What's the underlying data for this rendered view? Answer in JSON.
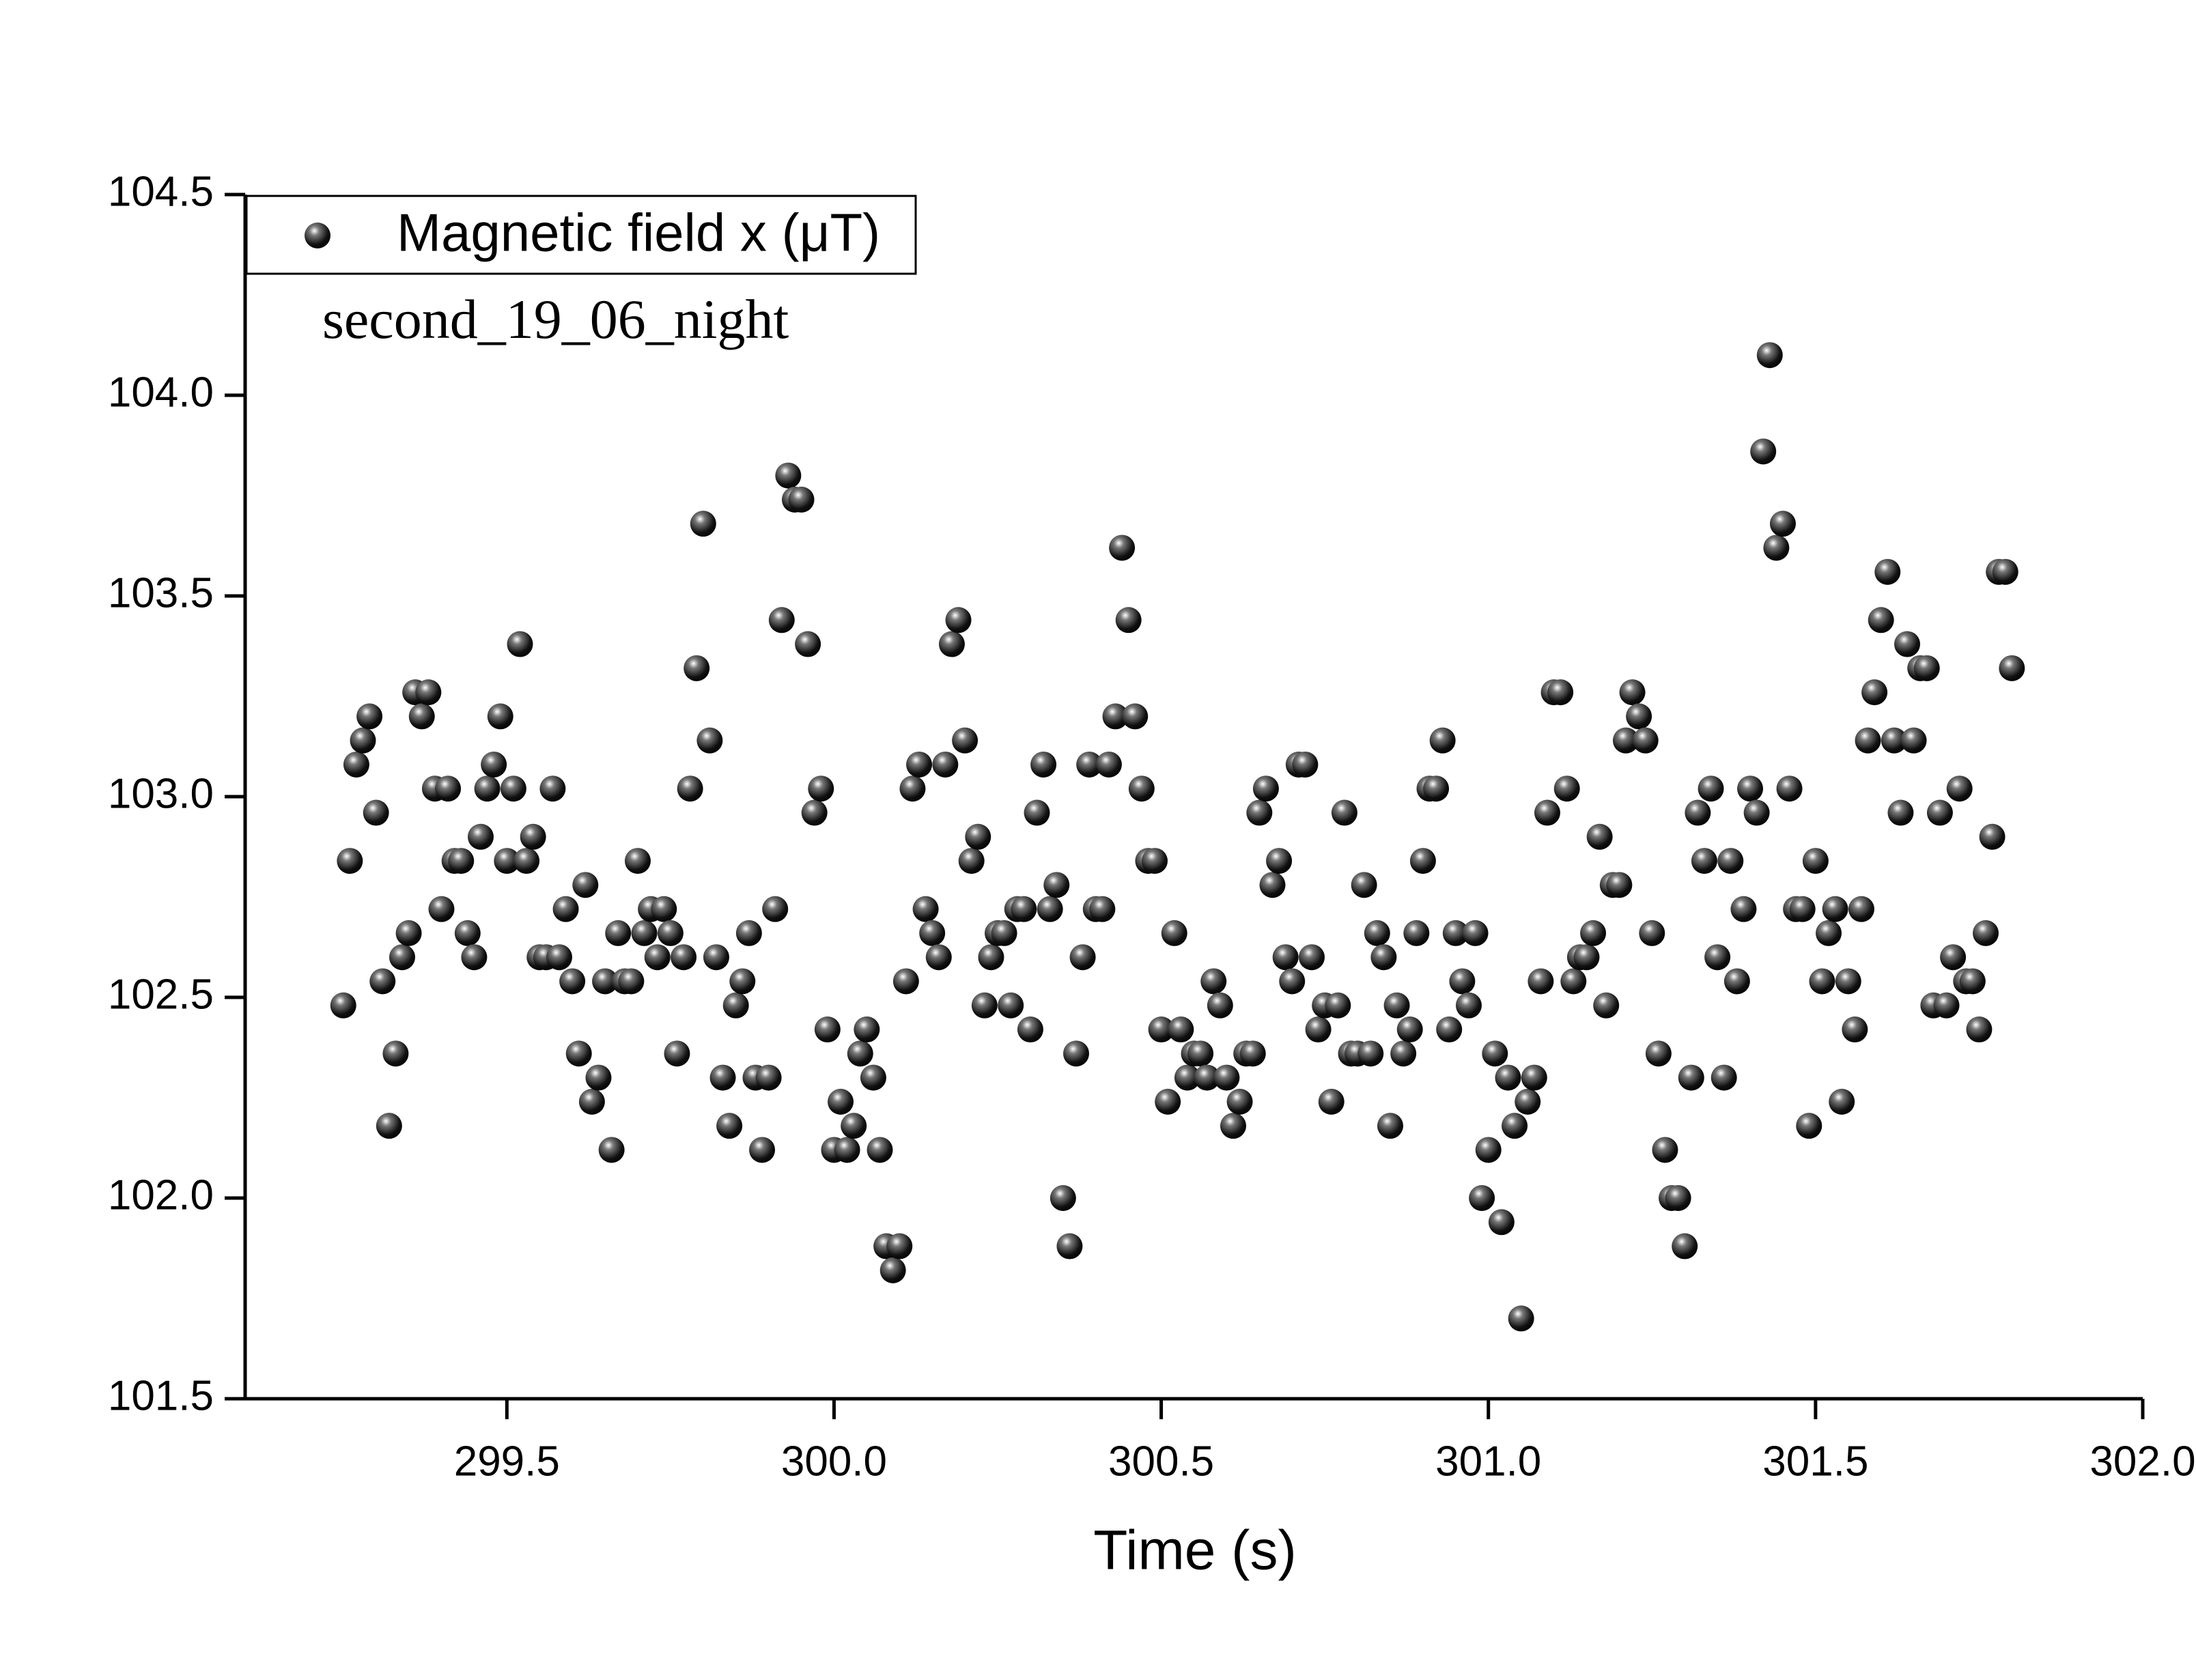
{
  "chart_data": {
    "type": "scatter",
    "xlabel": "Time (s)",
    "annotation": "second_19_06_night",
    "legend": "upper left",
    "xlim": [
      299.1,
      302.0
    ],
    "ylim": [
      101.5,
      104.5
    ],
    "xticks": [
      299.5,
      {
        "value": 300.0,
        "label": "300.0"
      },
      300.5,
      {
        "value": 301.0,
        "label": "301.0"
      },
      301.5,
      {
        "value": 302.0,
        "label": "302.0"
      }
    ],
    "yticks": [
      {
        "value": 101.5,
        "label": "101.5"
      },
      {
        "value": 102.0,
        "label": "102.0"
      },
      {
        "value": 102.5,
        "label": "102.5"
      },
      {
        "value": 103.0,
        "label": "103.0"
      },
      {
        "value": 103.5,
        "label": "103.5"
      },
      {
        "value": 104.0,
        "label": "104.0"
      },
      {
        "value": 104.5,
        "label": "104.5"
      }
    ],
    "x": [
      299.25,
      299.26,
      299.27,
      299.28,
      299.29,
      299.3,
      299.31,
      299.32,
      299.33,
      299.34,
      299.35,
      299.36,
      299.37,
      299.38,
      299.39,
      299.4,
      299.41,
      299.42,
      299.43,
      299.44,
      299.45,
      299.46,
      299.47,
      299.48,
      299.49,
      299.5,
      299.51,
      299.52,
      299.53,
      299.54,
      299.55,
      299.56,
      299.57,
      299.58,
      299.59,
      299.6,
      299.61,
      299.62,
      299.63,
      299.64,
      299.65,
      299.66,
      299.67,
      299.68,
      299.69,
      299.7,
      299.71,
      299.72,
      299.73,
      299.74,
      299.75,
      299.76,
      299.77,
      299.78,
      299.79,
      299.8,
      299.81,
      299.82,
      299.83,
      299.84,
      299.85,
      299.86,
      299.87,
      299.88,
      299.89,
      299.9,
      299.91,
      299.92,
      299.93,
      299.94,
      299.95,
      299.96,
      299.97,
      299.98,
      299.99,
      300.0,
      300.01,
      300.02,
      300.03,
      300.04,
      300.05,
      300.06,
      300.07,
      300.08,
      300.09,
      300.1,
      300.11,
      300.12,
      300.13,
      300.14,
      300.15,
      300.16,
      300.17,
      300.18,
      300.19,
      300.2,
      300.21,
      300.22,
      300.23,
      300.24,
      300.25,
      300.26,
      300.27,
      300.28,
      300.29,
      300.3,
      300.31,
      300.32,
      300.33,
      300.34,
      300.35,
      300.36,
      300.37,
      300.38,
      300.39,
      300.4,
      300.41,
      300.42,
      300.43,
      300.44,
      300.45,
      300.46,
      300.47,
      300.48,
      300.49,
      300.5,
      300.51,
      300.52,
      300.53,
      300.54,
      300.55,
      300.56,
      300.57,
      300.58,
      300.59,
      300.6,
      300.61,
      300.62,
      300.63,
      300.64,
      300.65,
      300.66,
      300.67,
      300.68,
      300.69,
      300.7,
      300.71,
      300.72,
      300.73,
      300.74,
      300.75,
      300.76,
      300.77,
      300.78,
      300.79,
      300.8,
      300.81,
      300.82,
      300.83,
      300.84,
      300.85,
      300.86,
      300.87,
      300.88,
      300.89,
      300.9,
      300.91,
      300.92,
      300.93,
      300.94,
      300.95,
      300.96,
      300.97,
      300.98,
      300.99,
      301.0,
      301.01,
      301.02,
      301.03,
      301.04,
      301.05,
      301.06,
      301.07,
      301.08,
      301.09,
      301.1,
      301.11,
      301.12,
      301.13,
      301.14,
      301.15,
      301.16,
      301.17,
      301.18,
      301.19,
      301.2,
      301.21,
      301.22,
      301.23,
      301.24,
      301.25,
      301.26,
      301.27,
      301.28,
      301.29,
      301.3,
      301.31,
      301.32,
      301.33,
      301.34,
      301.35,
      301.36,
      301.37,
      301.38,
      301.39,
      301.4,
      301.41,
      301.42,
      301.43,
      301.44,
      301.45,
      301.46,
      301.47,
      301.48,
      301.49,
      301.5,
      301.51,
      301.52,
      301.53,
      301.54,
      301.55,
      301.56,
      301.57,
      301.58,
      301.59,
      301.6,
      301.61,
      301.62,
      301.63,
      301.64,
      301.65,
      301.66,
      301.67,
      301.68,
      301.69,
      301.7,
      301.71,
      301.72,
      301.73,
      301.74,
      301.75,
      301.76,
      301.77,
      301.78,
      301.79,
      301.8
    ],
    "series": [
      {
        "name": "Magnetic field x (μT)",
        "color": "#000000",
        "values": [
          102.48,
          102.84,
          103.08,
          103.14,
          103.2,
          102.96,
          102.54,
          102.18,
          102.36,
          102.6,
          102.66,
          103.26,
          103.2,
          103.26,
          103.02,
          102.72,
          103.02,
          102.84,
          102.84,
          102.66,
          102.6,
          102.9,
          103.02,
          103.08,
          103.2,
          102.84,
          103.02,
          103.38,
          102.84,
          102.9,
          102.6,
          102.6,
          103.02,
          102.6,
          102.72,
          102.54,
          102.36,
          102.78,
          102.24,
          102.3,
          102.54,
          102.12,
          102.66,
          102.54,
          102.54,
          102.84,
          102.66,
          102.72,
          102.6,
          102.72,
          102.66,
          102.36,
          102.6,
          103.02,
          103.32,
          103.68,
          103.14,
          102.6,
          102.3,
          102.18,
          102.48,
          102.54,
          102.66,
          102.3,
          102.12,
          102.3,
          102.72,
          103.44,
          103.8,
          103.74,
          103.74,
          103.38,
          102.96,
          103.02,
          102.42,
          102.12,
          102.24,
          102.12,
          102.18,
          102.36,
          102.42,
          102.3,
          102.12,
          101.88,
          101.82,
          101.88,
          102.54,
          103.02,
          103.08,
          102.72,
          102.66,
          102.6,
          103.08,
          103.38,
          103.44,
          103.14,
          102.84,
          102.9,
          102.48,
          102.6,
          102.66,
          102.66,
          102.48,
          102.72,
          102.72,
          102.42,
          102.96,
          103.08,
          102.72,
          102.78,
          102.0,
          101.88,
          102.36,
          102.6,
          103.08,
          102.72,
          102.72,
          103.08,
          103.2,
          103.62,
          103.44,
          103.2,
          103.02,
          102.84,
          102.84,
          102.42,
          102.24,
          102.66,
          102.42,
          102.3,
          102.36,
          102.36,
          102.3,
          102.54,
          102.48,
          102.3,
          102.18,
          102.24,
          102.36,
          102.36,
          102.96,
          103.02,
          102.78,
          102.84,
          102.6,
          102.54,
          103.08,
          103.08,
          102.6,
          102.42,
          102.48,
          102.24,
          102.48,
          102.96,
          102.36,
          102.36,
          102.78,
          102.36,
          102.66,
          102.6,
          102.18,
          102.48,
          102.36,
          102.42,
          102.66,
          102.84,
          103.02,
          103.02,
          103.14,
          102.42,
          102.66,
          102.54,
          102.48,
          102.66,
          102.0,
          102.12,
          102.36,
          101.94,
          102.3,
          102.18,
          101.7,
          102.24,
          102.3,
          102.54,
          102.96,
          103.26,
          103.26,
          103.02,
          102.54,
          102.6,
          102.6,
          102.66,
          102.9,
          102.48,
          102.78,
          102.78,
          103.14,
          103.26,
          103.2,
          103.14,
          102.66,
          102.36,
          102.12,
          102.0,
          102.0,
          101.88,
          102.3,
          102.96,
          102.84,
          103.02,
          102.6,
          102.3,
          102.84,
          102.54,
          102.72,
          103.02,
          102.96,
          103.86,
          104.1,
          103.62,
          103.68,
          103.02,
          102.72,
          102.72,
          102.18,
          102.84,
          102.54,
          102.66,
          102.72,
          102.24,
          102.54,
          102.42,
          102.72,
          103.14,
          103.26,
          103.44,
          103.56,
          103.14,
          102.96,
          103.38,
          103.14,
          103.32,
          103.32,
          102.48,
          102.96,
          102.48,
          102.6,
          103.02,
          102.54,
          102.54,
          102.42,
          102.66,
          102.9,
          103.56,
          103.56,
          103.32
        ]
      }
    ]
  }
}
